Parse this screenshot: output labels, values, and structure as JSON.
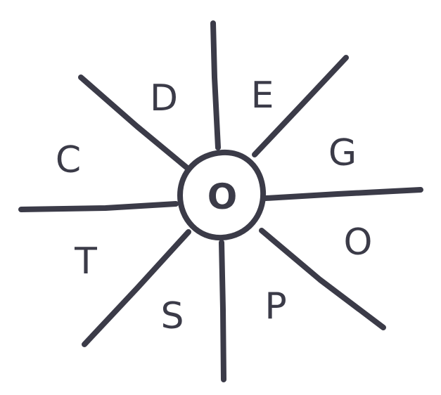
{
  "colors": {
    "ink": "#3b3b48",
    "background": "#ffffff"
  },
  "center": {
    "letter": "O"
  },
  "sectors": [
    {
      "letter": "E"
    },
    {
      "letter": "G"
    },
    {
      "letter": "O"
    },
    {
      "letter": "P"
    },
    {
      "letter": "S"
    },
    {
      "letter": "T"
    },
    {
      "letter": "C"
    },
    {
      "letter": "D"
    }
  ]
}
